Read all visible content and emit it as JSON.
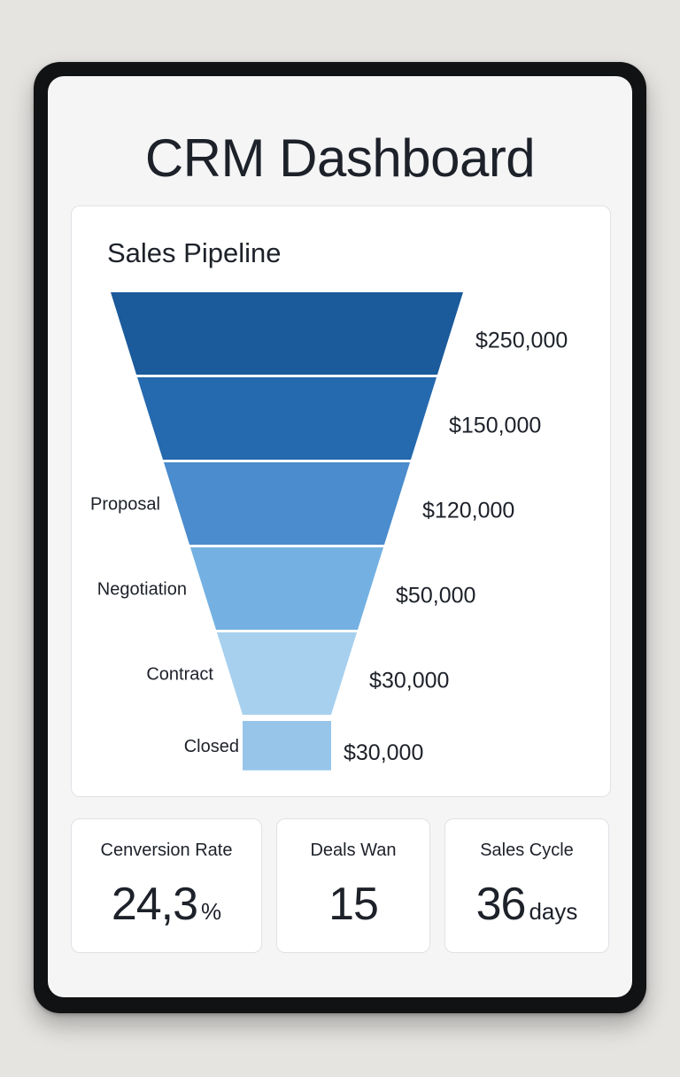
{
  "dashboard": {
    "title": "CRM Dashboard"
  },
  "pipeline": {
    "title": "Sales Pipeline"
  },
  "chart_data": {
    "type": "funnel",
    "title": "Sales Pipeline",
    "stages": [
      {
        "label": "",
        "value_label": "$250,000",
        "value": 250000,
        "color": "#1b5a9b"
      },
      {
        "label": "",
        "value_label": "$150,000",
        "value": 150000,
        "color": "#2569ae"
      },
      {
        "label": "Proposal",
        "value_label": "$120,000",
        "value": 120000,
        "color": "#4a8ccd"
      },
      {
        "label": "Negotiation",
        "value_label": "$50,000",
        "value": 50000,
        "color": "#74b1e2"
      },
      {
        "label": "Contract",
        "value_label": "$30,000",
        "value": 30000,
        "color": "#a7d0ef"
      },
      {
        "label": "Closed",
        "value_label": "$30,000",
        "value": 30000,
        "color": "#97c5ea"
      }
    ]
  },
  "stats": [
    {
      "label": "Cenversion Rate",
      "value": "24,3",
      "unit": "%"
    },
    {
      "label": "Deals Wan",
      "value": "15",
      "unit": ""
    },
    {
      "label": "Sales Cycle",
      "value": "36",
      "unit": "days"
    }
  ]
}
